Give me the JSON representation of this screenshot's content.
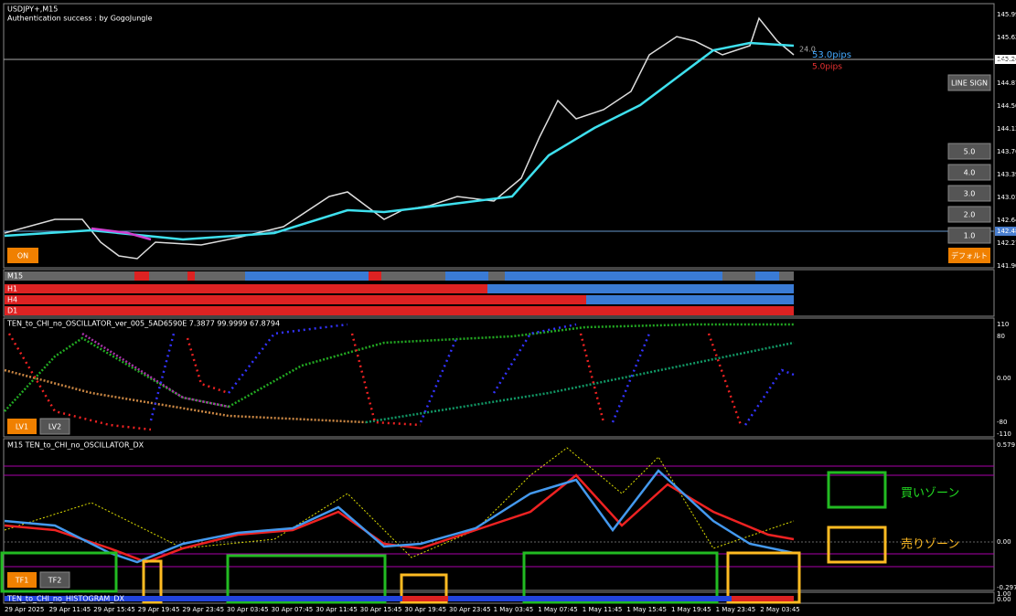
{
  "header": {
    "symbol": "USDJPY+,M15",
    "auth": "Authentication success : by GogoJungle"
  },
  "price_axis": [
    "145.99",
    "145.62",
    "145.24",
    "144.87",
    "144.50",
    "144.13",
    "143.76",
    "143.39",
    "143.01",
    "142.64",
    "142.27",
    "141.90"
  ],
  "price_labels": {
    "current": "145.24",
    "bid": "142.48"
  },
  "annotations": {
    "level": "24.0",
    "pips_up": "53.0pips",
    "pips_down": "5.0pips"
  },
  "buttons": {
    "line_sign": "LINE SIGN",
    "levels": [
      "5.0",
      "4.0",
      "3.0",
      "2.0",
      "1.0"
    ],
    "default": "デフォルト",
    "on": "ON",
    "lv": [
      "LV1",
      "LV2"
    ],
    "tf": [
      "TF1",
      "TF2"
    ]
  },
  "rows": [
    "M15",
    "H1",
    "H4",
    "D1"
  ],
  "oscillator": {
    "title": "TEN_to_CHI_no_OSCILLATOR_ver_005_5AD6590E 7.3877 99.9999 67.8794",
    "axis": [
      "110",
      "80",
      "0.00",
      "-80",
      "-110"
    ]
  },
  "dx": {
    "title": "M15 TEN_to_CHI_no_OSCILLATOR_DX",
    "axis": [
      "0.579",
      "0.00",
      "-0.297"
    ],
    "buy_zone": "買いゾーン",
    "sell_zone": "売りゾーン"
  },
  "histogram": {
    "title": "TEN_to_CHI_no_HISTOGRAM_DX",
    "axis": [
      "1.00",
      "0.00"
    ]
  },
  "time_axis": [
    "29 Apr 2025",
    "29 Apr 11:45",
    "29 Apr 15:45",
    "29 Apr 19:45",
    "29 Apr 23:45",
    "30 Apr 03:45",
    "30 Apr 07:45",
    "30 Apr 11:45",
    "30 Apr 15:45",
    "30 Apr 19:45",
    "30 Apr 23:45",
    "1 May 03:45",
    "1 May 07:45",
    "1 May 11:45",
    "1 May 15:45",
    "1 May 19:45",
    "1 May 23:45",
    "2 May 03:45"
  ]
}
